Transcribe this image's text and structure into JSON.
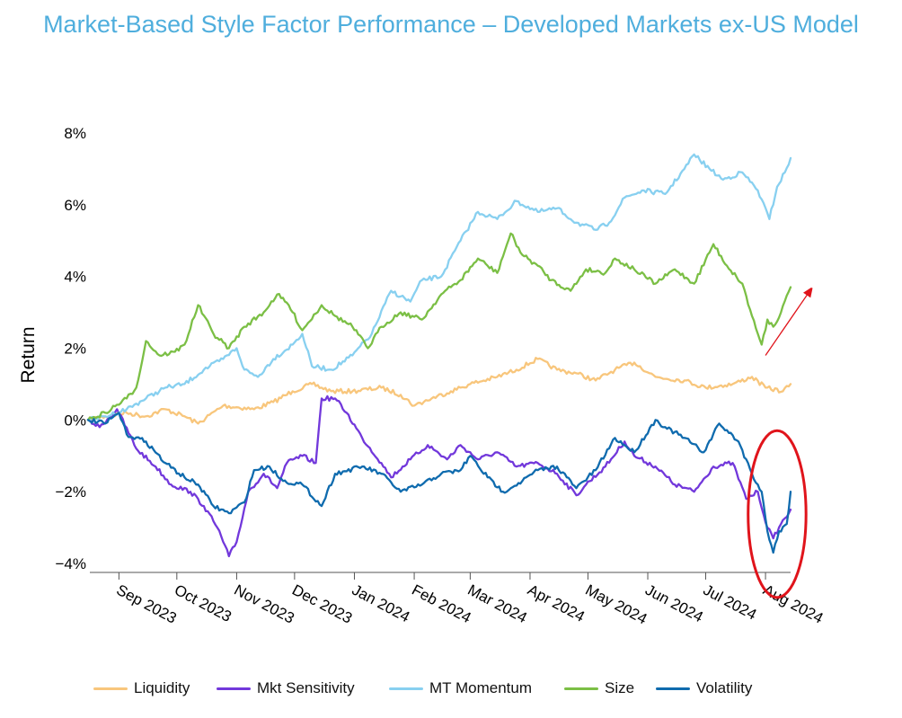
{
  "title": "Market-Based Style Factor Performance – Developed Markets ex-US Model",
  "colors": {
    "title": "#4FAEDD",
    "annotation": "#E0141B"
  },
  "chart_data": {
    "type": "line",
    "title": "Market-Based Style Factor Performance – Developed Markets ex-US Model",
    "ylabel": "Return",
    "xlabel": "",
    "ylim": [
      -4.5,
      8.5
    ],
    "y_ticks": [
      -4,
      -2,
      0,
      2,
      4,
      6,
      8
    ],
    "y_tick_labels": [
      "−4%",
      "−2%",
      "0%",
      "2%",
      "4%",
      "6%",
      "8%"
    ],
    "x_tick_labels": [
      "Sep 2023",
      "Oct 2023",
      "Nov 2023",
      "Dec 2023",
      "Jan 2024",
      "Feb 2024",
      "Mar 2024",
      "Apr 2024",
      "May 2024",
      "Jun 2024",
      "Jul 2024",
      "Aug 2024"
    ],
    "x_tick_dates": [
      "2023-09-01",
      "2023-10-01",
      "2023-11-01",
      "2023-12-01",
      "2024-01-01",
      "2024-02-01",
      "2024-03-01",
      "2024-04-01",
      "2024-05-01",
      "2024-06-01",
      "2024-07-01",
      "2024-08-01"
    ],
    "x_range": [
      "2023-08-16",
      "2024-08-14"
    ],
    "grid": false,
    "legend_position": "bottom",
    "series": [
      {
        "name": "Liquidity",
        "color": "#F8C67C",
        "points": [
          [
            "2023-08-16",
            0
          ],
          [
            "2023-08-25",
            0.1
          ],
          [
            "2023-09-05",
            0.2
          ],
          [
            "2023-09-15",
            0.1
          ],
          [
            "2023-09-25",
            0.3
          ],
          [
            "2023-10-05",
            0.1
          ],
          [
            "2023-10-12",
            -0.1
          ],
          [
            "2023-10-25",
            0.4
          ],
          [
            "2023-11-10",
            0.3
          ],
          [
            "2023-11-20",
            0.5
          ],
          [
            "2023-11-30",
            0.8
          ],
          [
            "2023-12-10",
            1.0
          ],
          [
            "2023-12-20",
            0.8
          ],
          [
            "2023-12-31",
            0.8
          ],
          [
            "2024-01-15",
            0.9
          ],
          [
            "2024-01-25",
            0.7
          ],
          [
            "2024-02-01",
            0.4
          ],
          [
            "2024-02-10",
            0.6
          ],
          [
            "2024-02-20",
            0.8
          ],
          [
            "2024-03-01",
            1.0
          ],
          [
            "2024-03-15",
            1.2
          ],
          [
            "2024-03-25",
            1.4
          ],
          [
            "2024-04-05",
            1.7
          ],
          [
            "2024-04-15",
            1.4
          ],
          [
            "2024-04-25",
            1.3
          ],
          [
            "2024-05-05",
            1.1
          ],
          [
            "2024-05-15",
            1.4
          ],
          [
            "2024-05-25",
            1.6
          ],
          [
            "2024-06-05",
            1.2
          ],
          [
            "2024-06-20",
            1.1
          ],
          [
            "2024-07-01",
            0.9
          ],
          [
            "2024-07-15",
            1.0
          ],
          [
            "2024-07-25",
            1.2
          ],
          [
            "2024-08-01",
            0.9
          ],
          [
            "2024-08-10",
            0.8
          ],
          [
            "2024-08-14",
            1.0
          ]
        ]
      },
      {
        "name": "Mkt Sensitivity",
        "color": "#7238DB",
        "points": [
          [
            "2023-08-16",
            0
          ],
          [
            "2023-08-22",
            -0.2
          ],
          [
            "2023-08-31",
            0.3
          ],
          [
            "2023-09-10",
            -0.8
          ],
          [
            "2023-09-20",
            -1.3
          ],
          [
            "2023-09-28",
            -1.8
          ],
          [
            "2023-10-08",
            -2.0
          ],
          [
            "2023-10-15",
            -2.4
          ],
          [
            "2023-10-22",
            -3.0
          ],
          [
            "2023-10-28",
            -3.8
          ],
          [
            "2023-11-01",
            -3.4
          ],
          [
            "2023-11-07",
            -2.0
          ],
          [
            "2023-11-15",
            -1.5
          ],
          [
            "2023-11-22",
            -1.9
          ],
          [
            "2023-11-27",
            -1.2
          ],
          [
            "2023-12-05",
            -1.0
          ],
          [
            "2023-12-12",
            -1.2
          ],
          [
            "2023-12-15",
            0.6
          ],
          [
            "2023-12-22",
            0.6
          ],
          [
            "2023-12-28",
            0.2
          ],
          [
            "2024-01-05",
            -0.5
          ],
          [
            "2024-01-15",
            -1.2
          ],
          [
            "2024-01-20",
            -1.6
          ],
          [
            "2024-01-30",
            -1.1
          ],
          [
            "2024-02-08",
            -0.7
          ],
          [
            "2024-02-18",
            -1.1
          ],
          [
            "2024-02-25",
            -0.7
          ],
          [
            "2024-03-05",
            -1.1
          ],
          [
            "2024-03-15",
            -0.9
          ],
          [
            "2024-03-25",
            -1.3
          ],
          [
            "2024-04-05",
            -1.2
          ],
          [
            "2024-04-15",
            -1.5
          ],
          [
            "2024-04-25",
            -2.1
          ],
          [
            "2024-04-30",
            -1.8
          ],
          [
            "2024-05-10",
            -1.3
          ],
          [
            "2024-05-20",
            -0.6
          ],
          [
            "2024-05-25",
            -1.0
          ],
          [
            "2024-06-05",
            -1.3
          ],
          [
            "2024-06-15",
            -1.8
          ],
          [
            "2024-06-25",
            -2.0
          ],
          [
            "2024-07-05",
            -1.3
          ],
          [
            "2024-07-15",
            -1.2
          ],
          [
            "2024-07-22",
            -2.2
          ],
          [
            "2024-07-28",
            -2.0
          ],
          [
            "2024-08-02",
            -3.0
          ],
          [
            "2024-08-05",
            -3.3
          ],
          [
            "2024-08-09",
            -2.9
          ],
          [
            "2024-08-14",
            -2.5
          ]
        ]
      },
      {
        "name": "MT Momentum",
        "color": "#88D0F0",
        "points": [
          [
            "2023-08-16",
            0
          ],
          [
            "2023-08-25",
            0.1
          ],
          [
            "2023-09-05",
            0.3
          ],
          [
            "2023-09-15",
            0.6
          ],
          [
            "2023-09-25",
            0.9
          ],
          [
            "2023-10-05",
            1.0
          ],
          [
            "2023-10-15",
            1.4
          ],
          [
            "2023-10-25",
            1.7
          ],
          [
            "2023-11-01",
            2.0
          ],
          [
            "2023-11-05",
            1.4
          ],
          [
            "2023-11-12",
            1.2
          ],
          [
            "2023-11-20",
            1.7
          ],
          [
            "2023-11-30",
            2.1
          ],
          [
            "2023-12-05",
            2.4
          ],
          [
            "2023-12-10",
            1.5
          ],
          [
            "2023-12-20",
            1.4
          ],
          [
            "2023-12-31",
            1.8
          ],
          [
            "2024-01-10",
            2.4
          ],
          [
            "2024-01-20",
            3.6
          ],
          [
            "2024-01-30",
            3.3
          ],
          [
            "2024-02-05",
            3.9
          ],
          [
            "2024-02-15",
            4.0
          ],
          [
            "2024-02-25",
            5.0
          ],
          [
            "2024-03-05",
            5.8
          ],
          [
            "2024-03-15",
            5.6
          ],
          [
            "2024-03-25",
            6.1
          ],
          [
            "2024-04-05",
            5.8
          ],
          [
            "2024-04-15",
            5.9
          ],
          [
            "2024-04-25",
            5.5
          ],
          [
            "2024-05-05",
            5.3
          ],
          [
            "2024-05-12",
            5.5
          ],
          [
            "2024-05-20",
            6.2
          ],
          [
            "2024-05-30",
            6.4
          ],
          [
            "2024-06-10",
            6.3
          ],
          [
            "2024-06-20",
            7.0
          ],
          [
            "2024-06-25",
            7.4
          ],
          [
            "2024-07-03",
            7.0
          ],
          [
            "2024-07-10",
            6.7
          ],
          [
            "2024-07-20",
            6.9
          ],
          [
            "2024-07-28",
            6.4
          ],
          [
            "2024-08-03",
            5.6
          ],
          [
            "2024-08-07",
            6.5
          ],
          [
            "2024-08-11",
            6.9
          ],
          [
            "2024-08-14",
            7.3
          ]
        ]
      },
      {
        "name": "Size",
        "color": "#7BBF45",
        "points": [
          [
            "2023-08-16",
            0
          ],
          [
            "2023-08-25",
            0.2
          ],
          [
            "2023-09-05",
            0.6
          ],
          [
            "2023-09-10",
            0.9
          ],
          [
            "2023-09-15",
            2.2
          ],
          [
            "2023-09-22",
            1.8
          ],
          [
            "2023-09-30",
            1.9
          ],
          [
            "2023-10-05",
            2.1
          ],
          [
            "2023-10-12",
            3.2
          ],
          [
            "2023-10-20",
            2.4
          ],
          [
            "2023-10-28",
            2.0
          ],
          [
            "2023-11-05",
            2.6
          ],
          [
            "2023-11-15",
            3.0
          ],
          [
            "2023-11-22",
            3.5
          ],
          [
            "2023-11-28",
            3.2
          ],
          [
            "2023-12-05",
            2.5
          ],
          [
            "2023-12-15",
            3.2
          ],
          [
            "2023-12-22",
            2.9
          ],
          [
            "2023-12-31",
            2.6
          ],
          [
            "2024-01-08",
            2.0
          ],
          [
            "2024-01-15",
            2.6
          ],
          [
            "2024-01-25",
            3.0
          ],
          [
            "2024-02-05",
            2.8
          ],
          [
            "2024-02-15",
            3.5
          ],
          [
            "2024-02-25",
            3.9
          ],
          [
            "2024-03-05",
            4.5
          ],
          [
            "2024-03-15",
            4.1
          ],
          [
            "2024-03-22",
            5.2
          ],
          [
            "2024-03-28",
            4.6
          ],
          [
            "2024-04-05",
            4.3
          ],
          [
            "2024-04-12",
            3.9
          ],
          [
            "2024-04-22",
            3.6
          ],
          [
            "2024-04-30",
            4.2
          ],
          [
            "2024-05-10",
            4.1
          ],
          [
            "2024-05-15",
            4.5
          ],
          [
            "2024-05-25",
            4.2
          ],
          [
            "2024-06-05",
            3.8
          ],
          [
            "2024-06-15",
            4.2
          ],
          [
            "2024-06-25",
            3.8
          ],
          [
            "2024-07-05",
            4.9
          ],
          [
            "2024-07-12",
            4.3
          ],
          [
            "2024-07-20",
            3.8
          ],
          [
            "2024-07-25",
            2.9
          ],
          [
            "2024-07-30",
            2.1
          ],
          [
            "2024-08-02",
            2.8
          ],
          [
            "2024-08-05",
            2.6
          ],
          [
            "2024-08-09",
            3.0
          ],
          [
            "2024-08-14",
            3.7
          ]
        ]
      },
      {
        "name": "Volatility",
        "color": "#0F6BAE",
        "points": [
          [
            "2023-08-16",
            0
          ],
          [
            "2023-08-25",
            -0.1
          ],
          [
            "2023-09-01",
            0.2
          ],
          [
            "2023-09-05",
            -0.4
          ],
          [
            "2023-09-15",
            -0.6
          ],
          [
            "2023-09-25",
            -1.2
          ],
          [
            "2023-10-05",
            -1.6
          ],
          [
            "2023-10-12",
            -1.8
          ],
          [
            "2023-10-20",
            -2.4
          ],
          [
            "2023-10-28",
            -2.6
          ],
          [
            "2023-11-05",
            -2.3
          ],
          [
            "2023-11-10",
            -1.4
          ],
          [
            "2023-11-18",
            -1.3
          ],
          [
            "2023-11-25",
            -1.7
          ],
          [
            "2023-12-05",
            -1.8
          ],
          [
            "2023-12-15",
            -2.4
          ],
          [
            "2023-12-22",
            -1.5
          ],
          [
            "2024-01-05",
            -1.3
          ],
          [
            "2024-01-15",
            -1.5
          ],
          [
            "2024-01-25",
            -2.0
          ],
          [
            "2024-02-05",
            -1.8
          ],
          [
            "2024-02-15",
            -1.5
          ],
          [
            "2024-02-25",
            -1.4
          ],
          [
            "2024-03-01",
            -1.0
          ],
          [
            "2024-03-10",
            -1.6
          ],
          [
            "2024-03-18",
            -2.0
          ],
          [
            "2024-03-28",
            -1.7
          ],
          [
            "2024-04-05",
            -1.4
          ],
          [
            "2024-04-15",
            -1.3
          ],
          [
            "2024-04-25",
            -1.9
          ],
          [
            "2024-05-05",
            -1.4
          ],
          [
            "2024-05-15",
            -0.5
          ],
          [
            "2024-05-25",
            -0.9
          ],
          [
            "2024-06-05",
            0.0
          ],
          [
            "2024-06-10",
            -0.2
          ],
          [
            "2024-06-20",
            -0.5
          ],
          [
            "2024-06-30",
            -0.9
          ],
          [
            "2024-07-08",
            -0.1
          ],
          [
            "2024-07-18",
            -0.6
          ],
          [
            "2024-07-25",
            -1.5
          ],
          [
            "2024-07-30",
            -2.0
          ],
          [
            "2024-08-02",
            -3.1
          ],
          [
            "2024-08-05",
            -3.7
          ],
          [
            "2024-08-08",
            -3.1
          ],
          [
            "2024-08-12",
            -2.9
          ],
          [
            "2024-08-14",
            -2.0
          ]
        ]
      }
    ],
    "annotations": [
      {
        "kind": "ellipse",
        "color": "#E0141B",
        "x_range": [
          "2024-07-23",
          "2024-08-22"
        ],
        "y_range": [
          -4.95,
          -0.3
        ]
      },
      {
        "kind": "arrow",
        "color": "#E0141B",
        "from": [
          "2024-08-01",
          1.8
        ],
        "to": [
          "2024-08-24",
          3.6
        ]
      }
    ]
  }
}
